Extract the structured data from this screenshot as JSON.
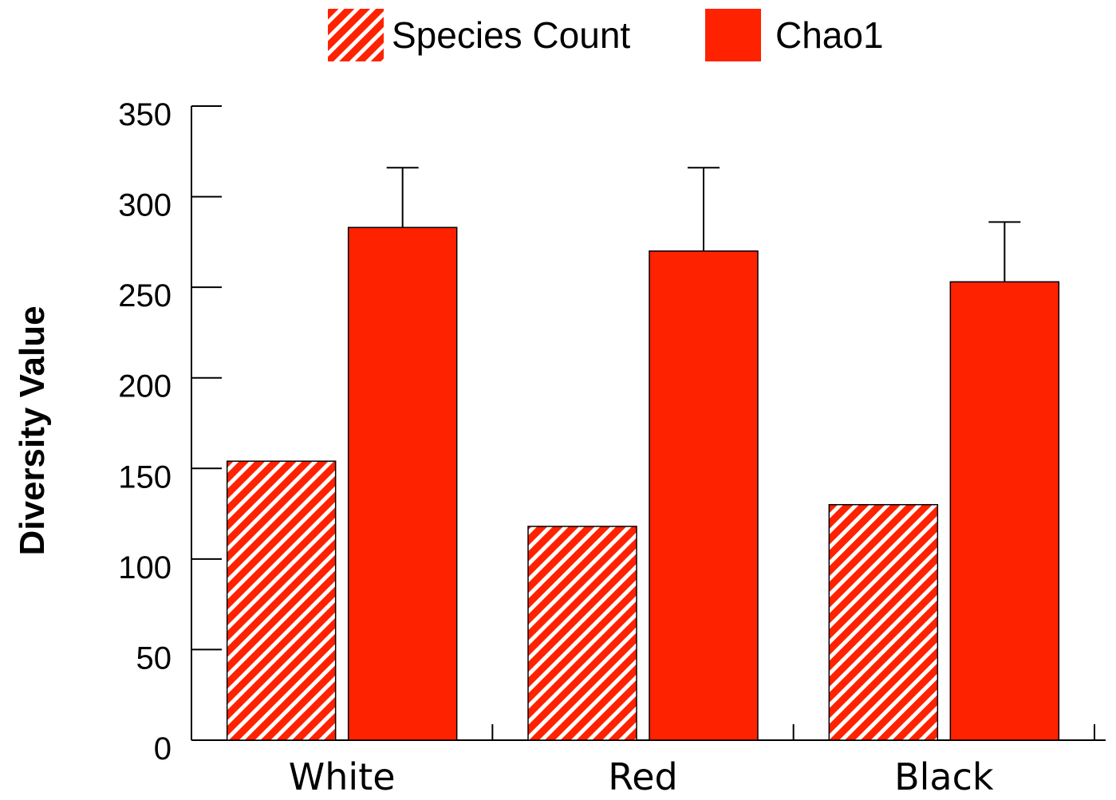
{
  "chart_data": {
    "type": "bar",
    "categories": [
      "White",
      "Red",
      "Black"
    ],
    "series": [
      {
        "name": "Species Count",
        "values": [
          154,
          118,
          130
        ],
        "color": "#ff2200",
        "pattern": "diagonal-hatch"
      },
      {
        "name": "Chao1",
        "values": [
          283,
          270,
          253
        ],
        "error_upper": [
          316,
          316,
          286
        ],
        "color": "#ff2200",
        "pattern": "solid"
      }
    ],
    "ylabel": "Diversity Value",
    "xlabel": "",
    "ylim": [
      0,
      350
    ],
    "yticks": [
      0,
      50,
      100,
      150,
      200,
      250,
      300,
      350
    ],
    "ytick_labels": [
      "0",
      "50",
      "100",
      "150",
      "200",
      "250",
      "300",
      "350"
    ],
    "legend_position": "top-center",
    "grid": false
  }
}
